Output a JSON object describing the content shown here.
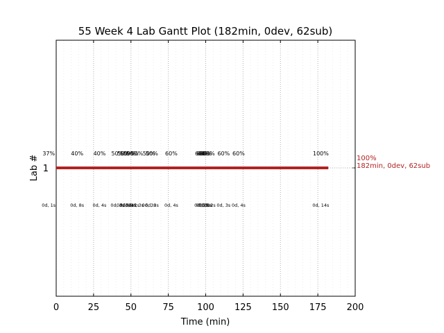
{
  "chart_data": {
    "type": "gantt",
    "title": "55 Week 4 Lab Gantt Plot (182min, 0dev, 62sub)",
    "xlabel": "Time (min)",
    "ylabel": "Lab #",
    "xlim": [
      0,
      200
    ],
    "x_ticks": [
      0,
      25,
      50,
      75,
      100,
      125,
      150,
      175,
      200
    ],
    "y_ticks": [
      "1"
    ],
    "grid": "vertical dotted",
    "bar": {
      "lab": "1",
      "start": 0,
      "end": 182,
      "color": "#b22222"
    },
    "end_label": {
      "line1": "100%",
      "line2": "182min, 0dev, 62sub"
    },
    "submissions": [
      {
        "t": -5,
        "score": "37%",
        "info": "0d, 1s"
      },
      {
        "t": 14,
        "score": "40%",
        "info": "0d, 8s"
      },
      {
        "t": 29,
        "score": "40%",
        "info": "0d, 4s"
      },
      {
        "t": 41,
        "score": "50%",
        "info": "0d, 3s"
      },
      {
        "t": 45,
        "score": "50%",
        "info": "0d, 3s"
      },
      {
        "t": 47,
        "score": "50%",
        "info": "0d, 3s"
      },
      {
        "t": 49,
        "score": "50%",
        "info": "0d, 4s"
      },
      {
        "t": 51,
        "score": "50%",
        "info": "0d, 2s"
      },
      {
        "t": 54,
        "score": "50%",
        "info": "0d, 3s"
      },
      {
        "t": 62,
        "score": "50%",
        "info": "0d, 3s"
      },
      {
        "t": 64,
        "score": "50%",
        "info": "0d, 3s"
      },
      {
        "t": 77,
        "score": "60%",
        "info": "0d, 4s"
      },
      {
        "t": 97,
        "score": "60%",
        "info": "0d, 2s"
      },
      {
        "t": 98,
        "score": "60%",
        "info": "0d, 3s"
      },
      {
        "t": 99,
        "score": "60%",
        "info": "0d, 2s"
      },
      {
        "t": 100,
        "score": "60%",
        "info": "0d, 1s"
      },
      {
        "t": 102,
        "score": "60%",
        "info": "0d, 2s"
      },
      {
        "t": 112,
        "score": "60%",
        "info": "0d, 3s"
      },
      {
        "t": 122,
        "score": "60%",
        "info": "0d, 4s"
      },
      {
        "t": 177,
        "score": "100%",
        "info": "0d, 14s"
      }
    ]
  }
}
